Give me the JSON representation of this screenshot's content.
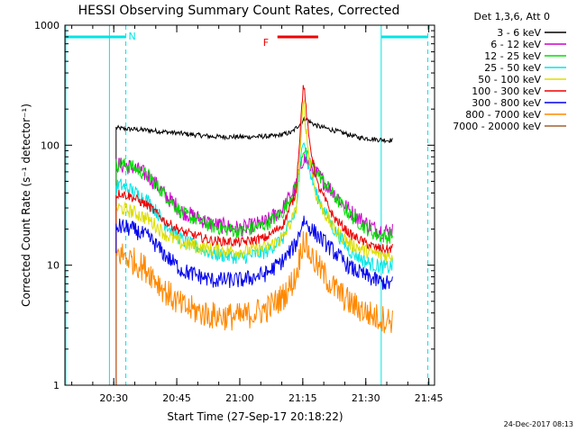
{
  "chart_data": {
    "type": "line",
    "title": "HESSI Observing Summary Count Rates, Corrected",
    "ylabel": "Corrected Count Rate (s⁻¹ detector⁻¹)",
    "xlabel": "Start Time (27-Sep-17 20:18:22)",
    "timestamp": "24-Dec-2017 08:13",
    "y_scale": "log",
    "ylim": [
      1,
      1000
    ],
    "y_ticks": [
      {
        "value": 1,
        "label": "1"
      },
      {
        "value": 10,
        "label": "10"
      },
      {
        "value": 100,
        "label": "100"
      },
      {
        "value": 1000,
        "label": "1000"
      }
    ],
    "x_unit": "minutes after 20:18:22",
    "xlim": [
      0,
      88
    ],
    "x_ticks": [
      {
        "value": 11.63,
        "label": "20:30"
      },
      {
        "value": 26.63,
        "label": "20:45"
      },
      {
        "value": 41.63,
        "label": "21:00"
      },
      {
        "value": 56.63,
        "label": "21:15"
      },
      {
        "value": 71.63,
        "label": "21:30"
      },
      {
        "value": 86.63,
        "label": "21:45"
      }
    ],
    "legend_header": "Det 1,3,6, Att 0",
    "series": [
      {
        "name": "3 - 6 keV",
        "color": "#000000",
        "noise": 0.02,
        "x": [
          12.2,
          13,
          20,
          28,
          35,
          42,
          50,
          54,
          57.3,
          58.5,
          60,
          64,
          70,
          74,
          77,
          78
        ],
        "y": [
          140,
          138,
          133,
          125,
          118,
          117,
          119,
          128,
          168,
          155,
          145,
          133,
          116,
          112,
          110,
          110
        ]
      },
      {
        "name": "6 - 12 keV",
        "color": "#cc00cc",
        "noise": 0.07,
        "x": [
          12.2,
          13,
          16,
          20,
          24,
          28,
          35,
          42,
          48,
          52,
          55,
          56.8,
          58,
          60,
          64,
          68,
          72,
          74,
          77,
          78
        ],
        "y": [
          70,
          68,
          66,
          55,
          38,
          28,
          22,
          20,
          23,
          30,
          45,
          80,
          70,
          58,
          40,
          28,
          22,
          20,
          19,
          20
        ]
      },
      {
        "name": "12 - 25 keV",
        "color": "#00dd00",
        "noise": 0.06,
        "x": [
          12.2,
          13,
          16,
          20,
          24,
          28,
          35,
          42,
          48,
          52,
          55,
          56.8,
          58,
          60,
          64,
          68,
          72,
          74,
          77,
          78
        ],
        "y": [
          68,
          70,
          66,
          55,
          38,
          27,
          21,
          19,
          22,
          28,
          45,
          95,
          75,
          60,
          38,
          26,
          20,
          18,
          17,
          18
        ]
      },
      {
        "name": "25 - 50 keV",
        "color": "#00e5e5",
        "noise": 0.06,
        "x": [
          12.2,
          13,
          16,
          20,
          24,
          28,
          35,
          42,
          48,
          52,
          55,
          56.8,
          58,
          60,
          64,
          68,
          72,
          74,
          77,
          78
        ],
        "y": [
          45,
          47,
          42,
          34,
          22,
          16,
          12.5,
          11.5,
          13,
          17,
          28,
          125,
          65,
          38,
          20,
          13,
          10.5,
          10,
          9.5,
          10
        ]
      },
      {
        "name": "50 - 100 keV",
        "color": "#dddd00",
        "noise": 0.06,
        "x": [
          12.2,
          13,
          16,
          20,
          24,
          28,
          35,
          42,
          48,
          52,
          55,
          56.8,
          58,
          60,
          64,
          68,
          72,
          74,
          77,
          78
        ],
        "y": [
          30,
          30,
          28,
          24,
          18,
          15,
          13.5,
          13,
          14,
          17,
          28,
          230,
          85,
          36,
          20,
          15,
          13,
          12.5,
          12,
          12
        ]
      },
      {
        "name": "100 - 300 keV",
        "color": "#ee0000",
        "noise": 0.04,
        "x": [
          12.2,
          13,
          16,
          20,
          24,
          28,
          35,
          42,
          48,
          52,
          55,
          56.8,
          58,
          60,
          64,
          68,
          72,
          74,
          77,
          78
        ],
        "y": [
          38,
          40,
          37,
          31,
          23,
          19,
          16,
          15.5,
          17,
          22,
          40,
          340,
          120,
          48,
          25,
          18,
          15,
          14,
          13.5,
          14
        ]
      },
      {
        "name": "300 - 800 keV",
        "color": "#0000ee",
        "noise": 0.07,
        "x": [
          12.2,
          13,
          16,
          20,
          24,
          28,
          35,
          42,
          48,
          52,
          55,
          56.8,
          58,
          60,
          64,
          68,
          72,
          74,
          77,
          78
        ],
        "y": [
          20,
          21,
          20,
          17,
          12,
          9,
          7.5,
          7.5,
          8.5,
          11,
          15,
          24,
          21,
          18,
          13,
          9.5,
          8,
          7.5,
          7,
          7
        ]
      },
      {
        "name": "800 - 7000 keV",
        "color": "#ff8800",
        "noise": 0.12,
        "x": [
          12.2,
          13,
          16,
          20,
          24,
          28,
          35,
          42,
          48,
          52,
          55,
          56.8,
          58,
          60,
          64,
          68,
          72,
          74,
          77,
          78
        ],
        "y": [
          12,
          12.5,
          11,
          9,
          6,
          4.5,
          3.8,
          3.7,
          4.3,
          5.5,
          8,
          17,
          13,
          10,
          6.5,
          4.8,
          4,
          3.7,
          3.5,
          3.5
        ]
      },
      {
        "name": "7000 - 20000 keV",
        "color": "#a06030",
        "noise": 0.0,
        "x": [],
        "y": []
      }
    ],
    "flag_bars": [
      {
        "label": "N",
        "color": "#00e5e5",
        "x_start": 0.2,
        "x_end": 14.5
      },
      {
        "label": "",
        "color": "#00e5e5",
        "x_start": 75.3,
        "x_end": 86.4
      },
      {
        "label": "F",
        "color": "#ee0000",
        "x_start": 50.6,
        "x_end": 60.3
      }
    ],
    "vlines": [
      {
        "x": 0.2,
        "style": "solid",
        "color": "#00e5e5"
      },
      {
        "x": 10.6,
        "style": "solid",
        "color": "#00e5e5"
      },
      {
        "x": 14.5,
        "style": "dashed",
        "color": "#00e5e5"
      },
      {
        "x": 75.3,
        "style": "solid",
        "color": "#00e5e5"
      },
      {
        "x": 86.4,
        "style": "dashed",
        "color": "#00e5e5"
      }
    ]
  }
}
